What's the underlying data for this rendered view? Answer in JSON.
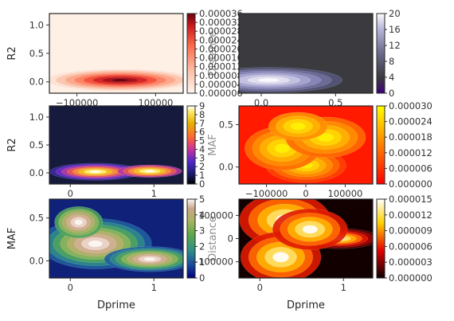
{
  "figure": {
    "panels": [
      {
        "id": "r2-vs-distance",
        "colormap": "Reds",
        "background": "#fff0e6",
        "ylabel": "R2",
        "xlabel": "",
        "x_ticks": [
          {
            "v": -100000,
            "t": "−100000"
          },
          {
            "v": 100000,
            "t": "100000"
          }
        ],
        "y_ticks": [
          {
            "v": 0.0,
            "t": "0.0"
          },
          {
            "v": 0.5,
            "t": "0.5"
          },
          {
            "v": 1.0,
            "t": "1.0"
          }
        ],
        "colorbar": {
          "label": "Distance",
          "ticks": [
            "0.000000",
            "0.000004",
            "0.000008",
            "0.000012",
            "0.000016",
            "0.000020",
            "0.000024",
            "0.000028",
            "0.000032",
            "0.000036"
          ]
        }
      },
      {
        "id": "dprime-vs-r2-purples",
        "colormap": "Purples_r",
        "background": "#3b3b3f",
        "ylabel": "",
        "xlabel": "",
        "x_ticks": [
          {
            "v": 0.0,
            "t": "0.0"
          },
          {
            "v": 0.5,
            "t": "0.5"
          }
        ],
        "y_ticks": [],
        "colorbar": {
          "label": "",
          "ticks": [
            "0",
            "4",
            "8",
            "12",
            "16",
            "20"
          ]
        }
      },
      {
        "id": "r2-vs-dprime-plasma",
        "colormap": "CMRmap",
        "background": "#161b3d",
        "ylabel": "R2",
        "xlabel": "",
        "x_ticks": [
          {
            "v": 0,
            "t": "0"
          },
          {
            "v": 1,
            "t": "1"
          }
        ],
        "y_ticks": [
          {
            "v": 0.0,
            "t": "0.0"
          },
          {
            "v": 0.5,
            "t": "0.5"
          },
          {
            "v": 1.0,
            "t": "1.0"
          }
        ],
        "colorbar": {
          "label": "MAF",
          "ticks": [
            "0",
            "1",
            "2",
            "3",
            "4",
            "5",
            "6",
            "7",
            "8",
            "9"
          ]
        }
      },
      {
        "id": "maf-vs-distance-autumn",
        "colormap": "autumn",
        "background": "#ff1a00",
        "ylabel": "",
        "xlabel": "",
        "x_ticks": [
          {
            "v": -100000,
            "t": "−100000"
          },
          {
            "v": 0,
            "t": "0"
          },
          {
            "v": 100000,
            "t": "100000"
          }
        ],
        "y_ticks": [
          {
            "v": 0.0,
            "t": "0.0"
          },
          {
            "v": 0.5,
            "t": "0.5"
          }
        ],
        "colorbar": {
          "label": "",
          "ticks": [
            "0.000000",
            "0.000006",
            "0.000012",
            "0.000018",
            "0.000024",
            "0.000030"
          ]
        }
      },
      {
        "id": "maf-vs-dprime-gist-earth",
        "colormap": "gist_earth",
        "background": "#10217a",
        "ylabel": "MAF",
        "xlabel": "Dprime",
        "x_ticks": [
          {
            "v": 0,
            "t": "0"
          },
          {
            "v": 1,
            "t": "1"
          }
        ],
        "y_ticks": [
          {
            "v": 0.0,
            "t": "0.0"
          },
          {
            "v": 0.5,
            "t": "0.5"
          }
        ],
        "colorbar": {
          "label": "Distance",
          "ticks": [
            "0",
            "1",
            "2",
            "3",
            "4",
            "5"
          ]
        }
      },
      {
        "id": "distance-vs-dprime-hot",
        "colormap": "hot",
        "background": "#120000",
        "ylabel": "",
        "xlabel": "Dprime",
        "x_ticks": [
          {
            "v": 0,
            "t": "0"
          },
          {
            "v": 1,
            "t": "1"
          }
        ],
        "y_ticks": [
          {
            "v": -100000,
            "t": "−100000"
          },
          {
            "v": 0,
            "t": "0"
          },
          {
            "v": 100000,
            "t": "100000"
          }
        ],
        "colorbar": {
          "label": "",
          "ticks": [
            "0.000000",
            "0.000003",
            "0.000006",
            "0.000009",
            "0.000012",
            "0.000015"
          ]
        }
      }
    ]
  },
  "chart_data": [
    {
      "type": "heatmap",
      "kind": "kde-contour",
      "title": "",
      "xlabel": "",
      "ylabel": "R2",
      "xlim": [
        -170000,
        170000
      ],
      "ylim": [
        -0.2,
        1.2
      ],
      "colorbar_label": "Distance",
      "colorbar_range": [
        0.0,
        3.6e-05
      ],
      "density_peaks": [
        {
          "x": 10000,
          "y": 0.03,
          "weight": 1.0
        }
      ]
    },
    {
      "type": "heatmap",
      "kind": "kde-contour",
      "title": "",
      "xlabel": "",
      "ylabel": "",
      "xlim": [
        -0.15,
        0.75
      ],
      "ylim": [
        -0.2,
        1.2
      ],
      "colorbar_range": [
        0,
        20
      ],
      "density_peaks": [
        {
          "x": 0.05,
          "y": 0.03,
          "weight": 1.0
        }
      ]
    },
    {
      "type": "heatmap",
      "kind": "kde-contour",
      "title": "",
      "xlabel": "",
      "ylabel": "R2",
      "xlim": [
        -0.25,
        1.35
      ],
      "ylim": [
        -0.2,
        1.2
      ],
      "colorbar_label": "MAF",
      "colorbar_range": [
        0,
        9
      ],
      "density_peaks": [
        {
          "x": 0.3,
          "y": 0.02,
          "weight": 1.0
        },
        {
          "x": 0.95,
          "y": 0.03,
          "weight": 0.55
        }
      ]
    },
    {
      "type": "heatmap",
      "kind": "kde-contour",
      "title": "",
      "xlabel": "",
      "ylabel": "",
      "xlim": [
        -170000,
        170000
      ],
      "ylim": [
        -0.2,
        0.72
      ],
      "colorbar_range": [
        0.0,
        3e-05
      ],
      "density_peaks": [
        {
          "x": 0,
          "y": 0.02,
          "weight": 1.0
        },
        {
          "x": -60000,
          "y": 0.22,
          "weight": 0.6
        },
        {
          "x": 50000,
          "y": 0.35,
          "weight": 0.5
        },
        {
          "x": -20000,
          "y": 0.48,
          "weight": 0.45
        }
      ]
    },
    {
      "type": "heatmap",
      "kind": "kde-contour",
      "title": "",
      "xlabel": "Dprime",
      "ylabel": "MAF",
      "xlim": [
        -0.25,
        1.35
      ],
      "ylim": [
        -0.2,
        0.72
      ],
      "colorbar_label": "Distance",
      "colorbar_range": [
        0,
        5.5
      ],
      "density_peaks": [
        {
          "x": 0.3,
          "y": 0.2,
          "weight": 1.0
        },
        {
          "x": 0.95,
          "y": 0.02,
          "weight": 0.9
        },
        {
          "x": 0.1,
          "y": 0.45,
          "weight": 0.5
        }
      ]
    },
    {
      "type": "heatmap",
      "kind": "kde-contour",
      "title": "",
      "xlabel": "Dprime",
      "ylabel": "",
      "xlim": [
        -0.25,
        1.35
      ],
      "ylim": [
        -170000,
        170000
      ],
      "colorbar_range": [
        0.0,
        1.6e-05
      ],
      "density_peaks": [
        {
          "x": 0.95,
          "y": 0,
          "weight": 1.0
        },
        {
          "x": 0.3,
          "y": 80000,
          "weight": 0.55
        },
        {
          "x": 0.25,
          "y": -80000,
          "weight": 0.5
        },
        {
          "x": 0.6,
          "y": 40000,
          "weight": 0.35
        }
      ]
    }
  ]
}
